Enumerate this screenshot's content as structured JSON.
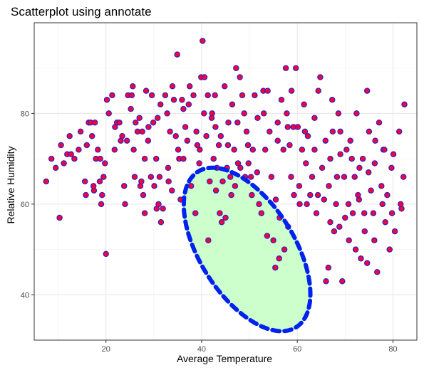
{
  "chart_data": {
    "type": "scatter",
    "title": "Scatterplot using annotate",
    "xlabel": "Average Temperature",
    "ylabel": "Relative Humidity",
    "xlim": [
      5,
      85
    ],
    "ylim": [
      30,
      100
    ],
    "xticks": [
      "20",
      "40",
      "60",
      "80"
    ],
    "yticks": [
      "40",
      "60",
      "80"
    ],
    "grid": true,
    "theme": "bw",
    "point_fill": "#ff0033",
    "point_stroke": "#3a1fbf",
    "annotation": {
      "type": "ellipse",
      "fill": "#ccffcc",
      "stroke": "#0022ee",
      "linestyle": "dashed",
      "center": [
        49.5,
        50
      ],
      "semi_axis_x": 10,
      "semi_axis_y": 20,
      "angle_deg": 30
    },
    "points": [
      [
        7.5,
        65
      ],
      [
        8.6,
        70
      ],
      [
        9.5,
        68
      ],
      [
        10.3,
        57
      ],
      [
        10.6,
        73
      ],
      [
        11.2,
        69
      ],
      [
        11.9,
        71
      ],
      [
        12.4,
        75
      ],
      [
        12.7,
        71
      ],
      [
        13.4,
        70
      ],
      [
        14.3,
        72
      ],
      [
        14.7,
        76
      ],
      [
        15.6,
        65
      ],
      [
        15.8,
        62
      ],
      [
        16.0,
        73
      ],
      [
        16.4,
        78
      ],
      [
        16.8,
        78
      ],
      [
        17.1,
        75
      ],
      [
        17.5,
        63
      ],
      [
        17.7,
        78
      ],
      [
        17.9,
        70
      ],
      [
        18.3,
        72
      ],
      [
        18.7,
        65
      ],
      [
        19.2,
        62
      ],
      [
        19.5,
        66
      ],
      [
        19.8,
        69
      ],
      [
        20.0,
        49
      ],
      [
        20.2,
        83
      ],
      [
        20.6,
        80
      ],
      [
        21.3,
        84
      ],
      [
        21.8,
        72
      ],
      [
        22.3,
        78
      ],
      [
        22.8,
        78
      ],
      [
        23.4,
        75
      ],
      [
        23.8,
        64
      ],
      [
        24.4,
        74
      ],
      [
        24.6,
        84
      ],
      [
        25.2,
        81
      ],
      [
        25.6,
        86
      ],
      [
        25.8,
        72
      ],
      [
        26.2,
        78
      ],
      [
        26.6,
        76
      ],
      [
        27.0,
        79
      ],
      [
        27.2,
        64
      ],
      [
        27.4,
        65
      ],
      [
        27.8,
        62
      ],
      [
        28.1,
        58
      ],
      [
        28.4,
        85
      ],
      [
        28.8,
        74
      ],
      [
        28.9,
        77
      ],
      [
        29.4,
        66
      ],
      [
        29.6,
        84
      ],
      [
        30.1,
        64
      ],
      [
        30.5,
        70
      ],
      [
        30.8,
        79
      ],
      [
        31.2,
        66
      ],
      [
        31.5,
        56
      ],
      [
        31.9,
        59
      ],
      [
        32.4,
        84
      ],
      [
        32.8,
        80
      ],
      [
        33.1,
        65
      ],
      [
        33.4,
        76
      ],
      [
        33.8,
        63
      ],
      [
        34.2,
        83
      ],
      [
        34.6,
        75
      ],
      [
        34.9,
        93
      ],
      [
        35.3,
        70
      ],
      [
        35.6,
        61
      ],
      [
        35.9,
        83
      ],
      [
        36.2,
        81
      ],
      [
        36.6,
        77
      ],
      [
        37.0,
        74
      ],
      [
        37.5,
        86
      ],
      [
        37.8,
        64
      ],
      [
        38.3,
        84
      ],
      [
        38.7,
        58
      ],
      [
        39.1,
        73
      ],
      [
        39.5,
        69
      ],
      [
        39.9,
        88
      ],
      [
        40.2,
        96
      ],
      [
        40.6,
        88
      ],
      [
        41.0,
        75
      ],
      [
        41.3,
        84
      ],
      [
        41.7,
        65
      ],
      [
        42.1,
        79
      ],
      [
        42.5,
        70
      ],
      [
        42.8,
        84
      ],
      [
        43.2,
        68
      ],
      [
        43.6,
        73
      ],
      [
        44.0,
        75
      ],
      [
        44.4,
        65
      ],
      [
        44.8,
        86
      ],
      [
        45.3,
        68
      ],
      [
        45.6,
        78
      ],
      [
        46.0,
        66
      ],
      [
        46.4,
        82
      ],
      [
        46.8,
        72
      ],
      [
        47.2,
        90
      ],
      [
        47.6,
        69
      ],
      [
        48.0,
        88
      ],
      [
        48.5,
        84
      ],
      [
        48.9,
        80
      ],
      [
        49.4,
        76
      ],
      [
        49.8,
        69
      ],
      [
        50.3,
        66
      ],
      [
        50.7,
        72
      ],
      [
        51.1,
        84
      ],
      [
        51.6,
        67
      ],
      [
        52.0,
        60
      ],
      [
        52.5,
        58
      ],
      [
        52.9,
        85
      ],
      [
        53.3,
        72
      ],
      [
        53.8,
        85
      ],
      [
        54.2,
        76
      ],
      [
        54.6,
        66
      ],
      [
        55.0,
        52
      ],
      [
        55.5,
        61
      ],
      [
        55.9,
        74
      ],
      [
        56.3,
        57
      ],
      [
        56.7,
        83
      ],
      [
        57.1,
        72
      ],
      [
        57.6,
        90
      ],
      [
        58.0,
        77
      ],
      [
        58.4,
        73
      ],
      [
        58.8,
        85
      ],
      [
        59.3,
        62
      ],
      [
        59.7,
        90
      ],
      [
        60.1,
        77
      ],
      [
        60.5,
        60
      ],
      [
        61.0,
        72
      ],
      [
        61.4,
        82
      ],
      [
        61.8,
        69
      ],
      [
        62.2,
        75
      ],
      [
        62.7,
        62
      ],
      [
        63.1,
        66
      ],
      [
        63.6,
        79
      ],
      [
        64.0,
        58
      ],
      [
        64.4,
        85
      ],
      [
        64.8,
        88
      ],
      [
        65.2,
        68
      ],
      [
        65.6,
        61
      ],
      [
        66.0,
        43
      ],
      [
        66.5,
        46
      ],
      [
        66.9,
        70
      ],
      [
        67.3,
        83
      ],
      [
        67.7,
        54
      ],
      [
        68.1,
        60
      ],
      [
        68.6,
        80
      ],
      [
        69.0,
        76
      ],
      [
        69.4,
        43
      ],
      [
        69.8,
        66
      ],
      [
        70.3,
        72
      ],
      [
        70.7,
        60
      ],
      [
        71.1,
        74
      ],
      [
        71.6,
        58
      ],
      [
        72.0,
        66
      ],
      [
        72.4,
        80
      ],
      [
        72.9,
        61
      ],
      [
        73.3,
        48
      ],
      [
        73.7,
        70
      ],
      [
        74.1,
        54
      ],
      [
        74.6,
        85
      ],
      [
        75.0,
        76
      ],
      [
        75.4,
        63
      ],
      [
        75.9,
        58
      ],
      [
        76.3,
        74
      ],
      [
        76.7,
        45
      ],
      [
        77.1,
        78
      ],
      [
        77.6,
        64
      ],
      [
        78.0,
        72
      ],
      [
        78.4,
        56
      ],
      [
        78.8,
        62
      ],
      [
        79.3,
        50
      ],
      [
        79.7,
        68
      ],
      [
        80.4,
        54
      ],
      [
        81.3,
        76
      ],
      [
        81.8,
        59
      ],
      [
        82.2,
        66
      ],
      [
        82.4,
        82
      ],
      [
        30.6,
        59
      ],
      [
        31.0,
        60
      ],
      [
        41.4,
        52
      ],
      [
        43.8,
        58
      ],
      [
        44.2,
        56
      ],
      [
        45.0,
        57
      ],
      [
        36.2,
        70
      ],
      [
        38.9,
        76
      ],
      [
        42.2,
        80
      ],
      [
        47.0,
        64
      ],
      [
        50.5,
        62
      ],
      [
        53.7,
        53
      ],
      [
        56.2,
        48
      ],
      [
        55.4,
        46
      ],
      [
        57.3,
        50
      ],
      [
        58.1,
        55
      ],
      [
        48.1,
        68
      ],
      [
        49.1,
        66
      ],
      [
        46.2,
        62
      ],
      [
        43.0,
        63
      ],
      [
        39.6,
        72
      ],
      [
        35.1,
        72
      ],
      [
        33.0,
        68
      ],
      [
        28.1,
        70
      ],
      [
        26.0,
        66
      ],
      [
        24.0,
        60
      ],
      [
        23.1,
        74
      ],
      [
        21.9,
        77
      ],
      [
        19.0,
        60
      ],
      [
        17.4,
        64
      ],
      [
        18.8,
        70
      ],
      [
        25.4,
        84
      ],
      [
        27.6,
        76
      ],
      [
        29.9,
        78
      ],
      [
        31.4,
        82
      ],
      [
        33.9,
        86
      ],
      [
        37.3,
        82
      ],
      [
        40.5,
        80
      ],
      [
        42.9,
        77
      ],
      [
        45.5,
        73
      ],
      [
        47.5,
        78
      ],
      [
        49.7,
        73
      ],
      [
        51.7,
        79
      ],
      [
        53.0,
        80
      ],
      [
        55.9,
        78
      ],
      [
        57.8,
        80
      ],
      [
        59.2,
        77
      ],
      [
        61.6,
        76
      ],
      [
        63.6,
        72
      ],
      [
        65.9,
        74
      ],
      [
        67.4,
        76
      ],
      [
        69.0,
        71
      ],
      [
        71.4,
        70
      ],
      [
        73.0,
        68
      ],
      [
        74.9,
        67
      ],
      [
        76.2,
        69
      ],
      [
        78.2,
        72
      ],
      [
        80.1,
        71
      ],
      [
        62.0,
        60
      ],
      [
        64.3,
        62
      ],
      [
        66.6,
        64
      ],
      [
        68.3,
        66
      ],
      [
        70.0,
        57
      ],
      [
        72.7,
        62
      ],
      [
        74.0,
        58
      ],
      [
        76.1,
        52
      ],
      [
        77.8,
        60
      ],
      [
        79.8,
        58
      ],
      [
        81.6,
        60
      ],
      [
        60.4,
        64
      ],
      [
        58.7,
        66
      ],
      [
        66.9,
        56
      ],
      [
        68.8,
        55
      ],
      [
        70.8,
        52
      ],
      [
        72.2,
        50
      ],
      [
        74.6,
        47
      ]
    ]
  }
}
